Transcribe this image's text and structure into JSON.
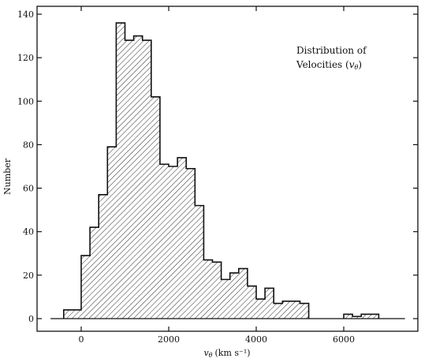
{
  "chart_data": {
    "type": "bar",
    "subtype": "histogram",
    "ylabel": "Number",
    "xlabel_parts": {
      "symbol": "v",
      "subscript": "θ",
      "units": "(km s⁻¹)"
    },
    "annotation": {
      "line1": "Distribution of",
      "line2_prefix": "Velocities (",
      "line2_symbol": "v",
      "line2_subscript": "θ",
      "line2_suffix": ")"
    },
    "xlim": [
      -1000,
      7600
    ],
    "ylim": [
      0,
      142
    ],
    "x_ticks": [
      0,
      2000,
      4000,
      6000
    ],
    "y_ticks": [
      0,
      20,
      40,
      60,
      80,
      100,
      120,
      140
    ],
    "bin_width": 200,
    "bins": [
      {
        "x0": -600,
        "x1": -400,
        "count": 0
      },
      {
        "x0": -400,
        "x1": -200,
        "count": 4
      },
      {
        "x0": -200,
        "x1": 0,
        "count": 4
      },
      {
        "x0": 0,
        "x1": 200,
        "count": 29
      },
      {
        "x0": 200,
        "x1": 400,
        "count": 42
      },
      {
        "x0": 400,
        "x1": 600,
        "count": 57
      },
      {
        "x0": 600,
        "x1": 800,
        "count": 79
      },
      {
        "x0": 800,
        "x1": 1000,
        "count": 136
      },
      {
        "x0": 1000,
        "x1": 1200,
        "count": 128
      },
      {
        "x0": 1200,
        "x1": 1400,
        "count": 130
      },
      {
        "x0": 1400,
        "x1": 1600,
        "count": 128
      },
      {
        "x0": 1600,
        "x1": 1800,
        "count": 102
      },
      {
        "x0": 1800,
        "x1": 2000,
        "count": 71
      },
      {
        "x0": 2000,
        "x1": 2200,
        "count": 70
      },
      {
        "x0": 2200,
        "x1": 2400,
        "count": 74
      },
      {
        "x0": 2400,
        "x1": 2600,
        "count": 69
      },
      {
        "x0": 2600,
        "x1": 2800,
        "count": 52
      },
      {
        "x0": 2800,
        "x1": 3000,
        "count": 27
      },
      {
        "x0": 3000,
        "x1": 3200,
        "count": 26
      },
      {
        "x0": 3200,
        "x1": 3400,
        "count": 18
      },
      {
        "x0": 3400,
        "x1": 3600,
        "count": 21
      },
      {
        "x0": 3600,
        "x1": 3800,
        "count": 23
      },
      {
        "x0": 3800,
        "x1": 4000,
        "count": 15
      },
      {
        "x0": 4000,
        "x1": 4200,
        "count": 9
      },
      {
        "x0": 4200,
        "x1": 4400,
        "count": 14
      },
      {
        "x0": 4400,
        "x1": 4600,
        "count": 7
      },
      {
        "x0": 4600,
        "x1": 4800,
        "count": 8
      },
      {
        "x0": 4800,
        "x1": 5000,
        "count": 8
      },
      {
        "x0": 5000,
        "x1": 5200,
        "count": 7
      },
      {
        "x0": 5200,
        "x1": 5400,
        "count": 0
      },
      {
        "x0": 5400,
        "x1": 5600,
        "count": 0
      },
      {
        "x0": 5600,
        "x1": 5800,
        "count": 0
      },
      {
        "x0": 5800,
        "x1": 6000,
        "count": 0
      },
      {
        "x0": 6000,
        "x1": 6200,
        "count": 2
      },
      {
        "x0": 6200,
        "x1": 6400,
        "count": 1
      },
      {
        "x0": 6400,
        "x1": 6600,
        "count": 2
      },
      {
        "x0": 6600,
        "x1": 6800,
        "count": 2
      }
    ],
    "hatch": "diagonal",
    "grid": false,
    "legend": "none",
    "colors": {
      "ink": "#111111",
      "background": "#ffffff"
    }
  }
}
